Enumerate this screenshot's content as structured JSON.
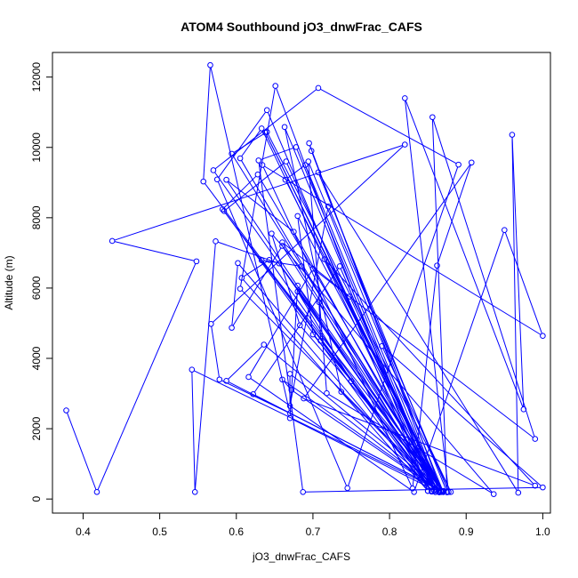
{
  "chart_data": {
    "type": "line",
    "title": "ATOM4 Southbound jO3_dnwFrac_CAFS",
    "xlabel": "jO3_dnwFrac_CAFS",
    "ylabel": "Altitude (m)",
    "xlim": [
      0.36,
      1.01
    ],
    "ylim": [
      -400,
      12700
    ],
    "x_ticks": [
      0.4,
      0.5,
      0.6,
      0.7,
      0.8,
      0.9,
      1.0
    ],
    "x_tick_labels": [
      "0.4",
      "0.5",
      "0.6",
      "0.7",
      "0.8",
      "0.9",
      "1.0"
    ],
    "y_ticks": [
      0,
      2000,
      4000,
      6000,
      8000,
      10000,
      12000
    ],
    "y_tick_labels": [
      "0",
      "2000",
      "4000",
      "6000",
      "8000",
      "10000",
      "12000"
    ],
    "grid": false,
    "legend": "none",
    "marker": "open-circle",
    "series": [
      {
        "color": "#0000ff",
        "points": [
          [
            0.378,
            2520
          ],
          [
            0.418,
            200
          ],
          [
            0.548,
            6760
          ],
          [
            0.438,
            7340
          ],
          [
            0.82,
            10080
          ],
          [
            0.567,
            4980
          ],
          [
            0.578,
            3400
          ],
          [
            0.67,
            2440
          ],
          [
            0.566,
            12340
          ],
          [
            0.557,
            9030
          ],
          [
            0.86,
            200
          ],
          [
            0.582,
            8240
          ],
          [
            0.628,
            9230
          ],
          [
            0.87,
            200
          ],
          [
            0.542,
            3680
          ],
          [
            0.546,
            200
          ],
          [
            0.573,
            7330
          ],
          [
            0.656,
            6700
          ],
          [
            0.87,
            200
          ],
          [
            0.638,
            10420
          ],
          [
            0.867,
            230
          ],
          [
            0.605,
            5980
          ],
          [
            0.651,
            11750
          ],
          [
            0.85,
            230
          ],
          [
            0.607,
            6290
          ],
          [
            0.643,
            6800
          ],
          [
            0.855,
            230
          ],
          [
            0.602,
            6710
          ],
          [
            0.594,
            4870
          ],
          [
            0.66,
            7200
          ],
          [
            0.865,
            200
          ],
          [
            0.57,
            9350
          ],
          [
            0.707,
            11690
          ],
          [
            0.89,
            9510
          ],
          [
            0.745,
            310
          ],
          [
            0.575,
            9090
          ],
          [
            0.64,
            11060
          ],
          [
            0.85,
            230
          ],
          [
            0.584,
            8190
          ],
          [
            0.665,
            9600
          ],
          [
            0.86,
            200
          ],
          [
            0.605,
            9690
          ],
          [
            0.633,
            10540
          ],
          [
            0.858,
            250
          ],
          [
            0.587,
            9080
          ],
          [
            0.675,
            7600
          ],
          [
            0.865,
            190
          ],
          [
            0.695,
            10120
          ],
          [
            0.698,
            9900
          ],
          [
            0.868,
            220
          ],
          [
            0.594,
            9820
          ],
          [
            0.64,
            10440
          ],
          [
            0.88,
            200
          ],
          [
            0.79,
            4350
          ],
          [
            1.0,
            330
          ],
          [
            0.687,
            200
          ],
          [
            0.629,
            9630
          ],
          [
            0.678,
            10010
          ],
          [
            0.86,
            300
          ],
          [
            0.67,
            3560
          ],
          [
            0.67,
            2650
          ],
          [
            0.72,
            8320
          ],
          [
            0.877,
            200
          ],
          [
            0.82,
            11400
          ],
          [
            0.975,
            2550
          ],
          [
            0.96,
            10360
          ],
          [
            0.968,
            180
          ],
          [
            0.707,
            9290
          ],
          [
            0.875,
            190
          ],
          [
            0.856,
            10860
          ],
          [
            0.99,
            1710
          ],
          [
            0.7,
            6550
          ],
          [
            0.616,
            3470
          ],
          [
            0.832,
            200
          ],
          [
            0.95,
            7650
          ],
          [
            1.0,
            4640
          ],
          [
            0.634,
            9500
          ],
          [
            0.83,
            300
          ],
          [
            0.862,
            6640
          ],
          [
            0.907,
            9570
          ],
          [
            0.688,
            2860
          ],
          [
            0.99,
            380
          ],
          [
            0.715,
            6820
          ],
          [
            0.87,
            220
          ],
          [
            0.587,
            3360
          ],
          [
            0.636,
            4390
          ],
          [
            0.87,
            200
          ],
          [
            0.68,
            8050
          ],
          [
            0.7,
            4680
          ],
          [
            0.87,
            210
          ],
          [
            0.694,
            9600
          ],
          [
            0.718,
            3010
          ],
          [
            0.936,
            140
          ],
          [
            0.646,
            7550
          ],
          [
            0.683,
            4940
          ],
          [
            0.87,
            230
          ],
          [
            0.633,
            6790
          ],
          [
            0.685,
            6620
          ],
          [
            0.87,
            220
          ],
          [
            0.622,
            2980
          ],
          [
            0.735,
            6620
          ],
          [
            0.86,
            200
          ],
          [
            0.663,
            10580
          ],
          [
            0.737,
            3050
          ],
          [
            0.865,
            200
          ],
          [
            0.68,
            5900
          ],
          [
            0.75,
            3350
          ],
          [
            0.855,
            210
          ],
          [
            0.708,
            5600
          ],
          [
            0.71,
            4500
          ],
          [
            0.86,
            240
          ],
          [
            0.67,
            2300
          ],
          [
            0.68,
            6070
          ],
          [
            0.87,
            210
          ],
          [
            0.664,
            9080
          ],
          [
            0.69,
            9500
          ],
          [
            0.865,
            220
          ],
          [
            0.672,
            3100
          ],
          [
            0.66,
            3400
          ],
          [
            0.868,
            200
          ],
          [
            0.748,
            5760
          ],
          [
            0.66,
            7300
          ],
          [
            0.87,
            210
          ]
        ]
      }
    ]
  }
}
